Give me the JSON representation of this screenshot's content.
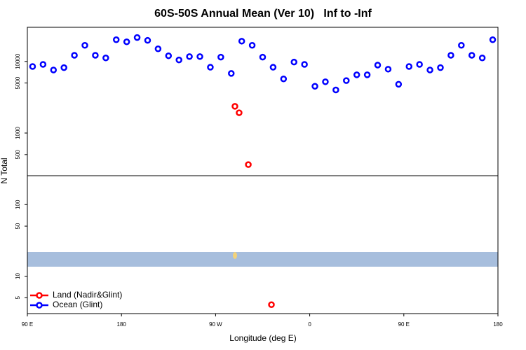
{
  "chart_data": {
    "type": "scatter",
    "title": "60S-50S Annual Mean (Ver 10)   Inf to -Inf",
    "x_label": "Longitude (deg E)",
    "y_label": "N Total",
    "log_y": true,
    "xlim": [
      90,
      540
    ],
    "xticks": [
      {
        "value": 90,
        "label": "90 E"
      },
      {
        "value": 180,
        "label": "180"
      },
      {
        "value": 270,
        "label": "90 W"
      },
      {
        "value": 360,
        "label": "0"
      },
      {
        "value": 450,
        "label": "90 E"
      },
      {
        "value": 540,
        "label": "180"
      }
    ],
    "ylim": [
      3,
      30000
    ],
    "yticks": [
      5,
      10,
      50,
      100,
      500,
      1000,
      5000,
      10000
    ],
    "legend": "bottom-left",
    "series": [
      {
        "name": "Land (Nadir&Glint)",
        "color": "#ff0000",
        "x": [
          288.5,
          292.5,
          301.3,
          323.4
        ],
        "values": [
          2360,
          1920,
          362,
          4
        ]
      },
      {
        "name": "Ocean (Glint)",
        "color": "#0000ff",
        "x": [
          95,
          105,
          115,
          125,
          135,
          145,
          155,
          165,
          175,
          185,
          195,
          205,
          215,
          225,
          235,
          245,
          255,
          265,
          275,
          285,
          295,
          305,
          315,
          325,
          335,
          345,
          355,
          365,
          375,
          385,
          395,
          405,
          415,
          425,
          435,
          445,
          455,
          465,
          475,
          485,
          495,
          505,
          515,
          525,
          535
        ],
        "values": [
          8500,
          9100,
          7600,
          8200,
          12200,
          16800,
          12200,
          11200,
          20100,
          18800,
          21600,
          19700,
          15000,
          12000,
          10500,
          11700,
          11700,
          8300,
          11500,
          6800,
          19200,
          16800,
          11500,
          8300,
          5700,
          9800,
          9100,
          4500,
          5200,
          4000,
          5400,
          6500,
          6500,
          8900,
          7800,
          4800,
          8500,
          9100,
          7600,
          8200,
          12200,
          16800,
          12200,
          11200,
          20100
        ]
      }
    ]
  }
}
